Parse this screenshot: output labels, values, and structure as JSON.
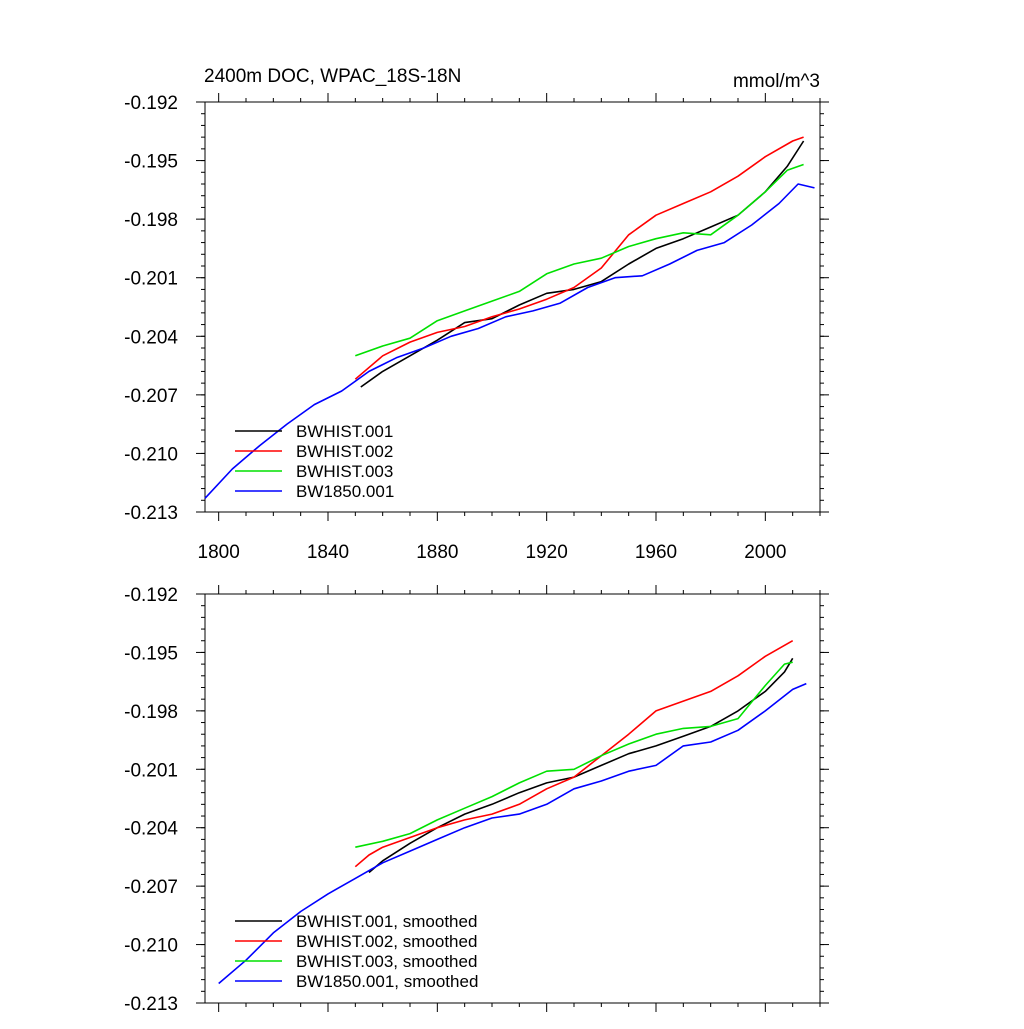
{
  "chart_data": [
    {
      "type": "line",
      "title": "2400m DOC, WPAC_18S-18N",
      "units": "mmol/m^3",
      "xlabel": "",
      "ylabel": "",
      "xlim": [
        1795,
        2020
      ],
      "ylim": [
        -0.213,
        -0.192
      ],
      "x_ticks": [
        1800,
        1840,
        1880,
        1920,
        1960,
        2000
      ],
      "y_ticks": [
        -0.192,
        -0.195,
        -0.198,
        -0.201,
        -0.204,
        -0.207,
        -0.21,
        -0.213
      ],
      "x_tick_labels": [
        "1800",
        "1840",
        "1880",
        "1920",
        "1960",
        "2000"
      ],
      "y_tick_labels": [
        "-0.192",
        "-0.195",
        "-0.198",
        "-0.201",
        "-0.204",
        "-0.207",
        "-0.210",
        "-0.213"
      ],
      "show_x_tick_labels": true,
      "grid": false,
      "legend_position": "bottom-left",
      "series": [
        {
          "name": "BWHIST.001",
          "color": "#000000",
          "points": [
            [
              1852,
              -0.2066
            ],
            [
              1860,
              -0.2058
            ],
            [
              1870,
              -0.205
            ],
            [
              1880,
              -0.2042
            ],
            [
              1890,
              -0.2033
            ],
            [
              1900,
              -0.2031
            ],
            [
              1910,
              -0.2024
            ],
            [
              1920,
              -0.2018
            ],
            [
              1930,
              -0.2016
            ],
            [
              1940,
              -0.2012
            ],
            [
              1950,
              -0.2003
            ],
            [
              1960,
              -0.1995
            ],
            [
              1970,
              -0.199
            ],
            [
              1980,
              -0.1984
            ],
            [
              1990,
              -0.1978
            ],
            [
              2000,
              -0.1966
            ],
            [
              2008,
              -0.1953
            ],
            [
              2014,
              -0.194
            ]
          ]
        },
        {
          "name": "BWHIST.002",
          "color": "#ff0000",
          "points": [
            [
              1850,
              -0.2062
            ],
            [
              1860,
              -0.205
            ],
            [
              1870,
              -0.2043
            ],
            [
              1880,
              -0.2038
            ],
            [
              1890,
              -0.2035
            ],
            [
              1900,
              -0.203
            ],
            [
              1910,
              -0.2026
            ],
            [
              1920,
              -0.2021
            ],
            [
              1930,
              -0.2015
            ],
            [
              1940,
              -0.2005
            ],
            [
              1950,
              -0.1988
            ],
            [
              1960,
              -0.1978
            ],
            [
              1970,
              -0.1972
            ],
            [
              1980,
              -0.1966
            ],
            [
              1990,
              -0.1958
            ],
            [
              2000,
              -0.1948
            ],
            [
              2010,
              -0.194
            ],
            [
              2014,
              -0.1938
            ]
          ]
        },
        {
          "name": "BWHIST.003",
          "color": "#00e000",
          "points": [
            [
              1850,
              -0.205
            ],
            [
              1860,
              -0.2045
            ],
            [
              1870,
              -0.2041
            ],
            [
              1880,
              -0.2032
            ],
            [
              1890,
              -0.2027
            ],
            [
              1900,
              -0.2022
            ],
            [
              1910,
              -0.2017
            ],
            [
              1920,
              -0.2008
            ],
            [
              1930,
              -0.2003
            ],
            [
              1940,
              -0.2
            ],
            [
              1950,
              -0.1994
            ],
            [
              1960,
              -0.199
            ],
            [
              1970,
              -0.1987
            ],
            [
              1980,
              -0.1988
            ],
            [
              1990,
              -0.1978
            ],
            [
              2000,
              -0.1966
            ],
            [
              2008,
              -0.1955
            ],
            [
              2014,
              -0.1952
            ]
          ]
        },
        {
          "name": "BW1850.001",
          "color": "#0000ff",
          "points": [
            [
              1795,
              -0.2123
            ],
            [
              1805,
              -0.2108
            ],
            [
              1815,
              -0.2096
            ],
            [
              1825,
              -0.2085
            ],
            [
              1835,
              -0.2075
            ],
            [
              1845,
              -0.2068
            ],
            [
              1855,
              -0.2058
            ],
            [
              1865,
              -0.2051
            ],
            [
              1875,
              -0.2046
            ],
            [
              1885,
              -0.204
            ],
            [
              1895,
              -0.2036
            ],
            [
              1905,
              -0.203
            ],
            [
              1915,
              -0.2027
            ],
            [
              1925,
              -0.2023
            ],
            [
              1935,
              -0.2015
            ],
            [
              1945,
              -0.201
            ],
            [
              1955,
              -0.2009
            ],
            [
              1965,
              -0.2003
            ],
            [
              1975,
              -0.1996
            ],
            [
              1985,
              -0.1992
            ],
            [
              1995,
              -0.1983
            ],
            [
              2005,
              -0.1972
            ],
            [
              2012,
              -0.1962
            ],
            [
              2018,
              -0.1964
            ]
          ]
        }
      ]
    },
    {
      "type": "line",
      "title": "",
      "units": "",
      "xlabel": "",
      "ylabel": "",
      "xlim": [
        1795,
        2020
      ],
      "ylim": [
        -0.213,
        -0.192
      ],
      "x_ticks": [
        1800,
        1840,
        1880,
        1920,
        1960,
        2000
      ],
      "y_ticks": [
        -0.192,
        -0.195,
        -0.198,
        -0.201,
        -0.204,
        -0.207,
        -0.21,
        -0.213
      ],
      "x_tick_labels": [],
      "y_tick_labels": [
        "-0.192",
        "-0.195",
        "-0.198",
        "-0.201",
        "-0.204",
        "-0.207",
        "-0.210",
        "-0.213"
      ],
      "show_x_tick_labels": false,
      "grid": false,
      "legend_position": "bottom-left",
      "series": [
        {
          "name": "BWHIST.001, smoothed",
          "color": "#000000",
          "points": [
            [
              1855,
              -0.2063
            ],
            [
              1860,
              -0.2057
            ],
            [
              1870,
              -0.2048
            ],
            [
              1880,
              -0.204
            ],
            [
              1890,
              -0.2033
            ],
            [
              1900,
              -0.2028
            ],
            [
              1910,
              -0.2022
            ],
            [
              1920,
              -0.2017
            ],
            [
              1930,
              -0.2014
            ],
            [
              1940,
              -0.2008
            ],
            [
              1950,
              -0.2002
            ],
            [
              1960,
              -0.1998
            ],
            [
              1970,
              -0.1993
            ],
            [
              1980,
              -0.1988
            ],
            [
              1990,
              -0.198
            ],
            [
              2000,
              -0.197
            ],
            [
              2007,
              -0.196
            ],
            [
              2010,
              -0.1953
            ]
          ]
        },
        {
          "name": "BWHIST.002, smoothed",
          "color": "#ff0000",
          "points": [
            [
              1850,
              -0.206
            ],
            [
              1855,
              -0.2054
            ],
            [
              1860,
              -0.205
            ],
            [
              1870,
              -0.2045
            ],
            [
              1880,
              -0.204
            ],
            [
              1890,
              -0.2036
            ],
            [
              1900,
              -0.2033
            ],
            [
              1910,
              -0.2028
            ],
            [
              1920,
              -0.202
            ],
            [
              1930,
              -0.2014
            ],
            [
              1940,
              -0.2003
            ],
            [
              1950,
              -0.1992
            ],
            [
              1960,
              -0.198
            ],
            [
              1970,
              -0.1975
            ],
            [
              1980,
              -0.197
            ],
            [
              1990,
              -0.1962
            ],
            [
              2000,
              -0.1952
            ],
            [
              2010,
              -0.1944
            ]
          ]
        },
        {
          "name": "BWHIST.003, smoothed",
          "color": "#00e000",
          "points": [
            [
              1850,
              -0.205
            ],
            [
              1860,
              -0.2047
            ],
            [
              1870,
              -0.2043
            ],
            [
              1880,
              -0.2036
            ],
            [
              1890,
              -0.203
            ],
            [
              1900,
              -0.2024
            ],
            [
              1910,
              -0.2017
            ],
            [
              1920,
              -0.2011
            ],
            [
              1930,
              -0.201
            ],
            [
              1940,
              -0.2003
            ],
            [
              1950,
              -0.1997
            ],
            [
              1960,
              -0.1992
            ],
            [
              1970,
              -0.1989
            ],
            [
              1980,
              -0.1988
            ],
            [
              1990,
              -0.1984
            ],
            [
              2000,
              -0.1967
            ],
            [
              2007,
              -0.1956
            ],
            [
              2010,
              -0.1955
            ]
          ]
        },
        {
          "name": "BW1850.001, smoothed",
          "color": "#0000ff",
          "points": [
            [
              1800,
              -0.212
            ],
            [
              1810,
              -0.2108
            ],
            [
              1820,
              -0.2094
            ],
            [
              1830,
              -0.2083
            ],
            [
              1840,
              -0.2074
            ],
            [
              1850,
              -0.2066
            ],
            [
              1860,
              -0.2058
            ],
            [
              1870,
              -0.2052
            ],
            [
              1880,
              -0.2046
            ],
            [
              1890,
              -0.204
            ],
            [
              1900,
              -0.2035
            ],
            [
              1910,
              -0.2033
            ],
            [
              1920,
              -0.2028
            ],
            [
              1930,
              -0.202
            ],
            [
              1940,
              -0.2016
            ],
            [
              1950,
              -0.2011
            ],
            [
              1960,
              -0.2008
            ],
            [
              1970,
              -0.1998
            ],
            [
              1980,
              -0.1996
            ],
            [
              1990,
              -0.199
            ],
            [
              2000,
              -0.198
            ],
            [
              2010,
              -0.1969
            ],
            [
              2015,
              -0.1966
            ]
          ]
        }
      ]
    }
  ]
}
